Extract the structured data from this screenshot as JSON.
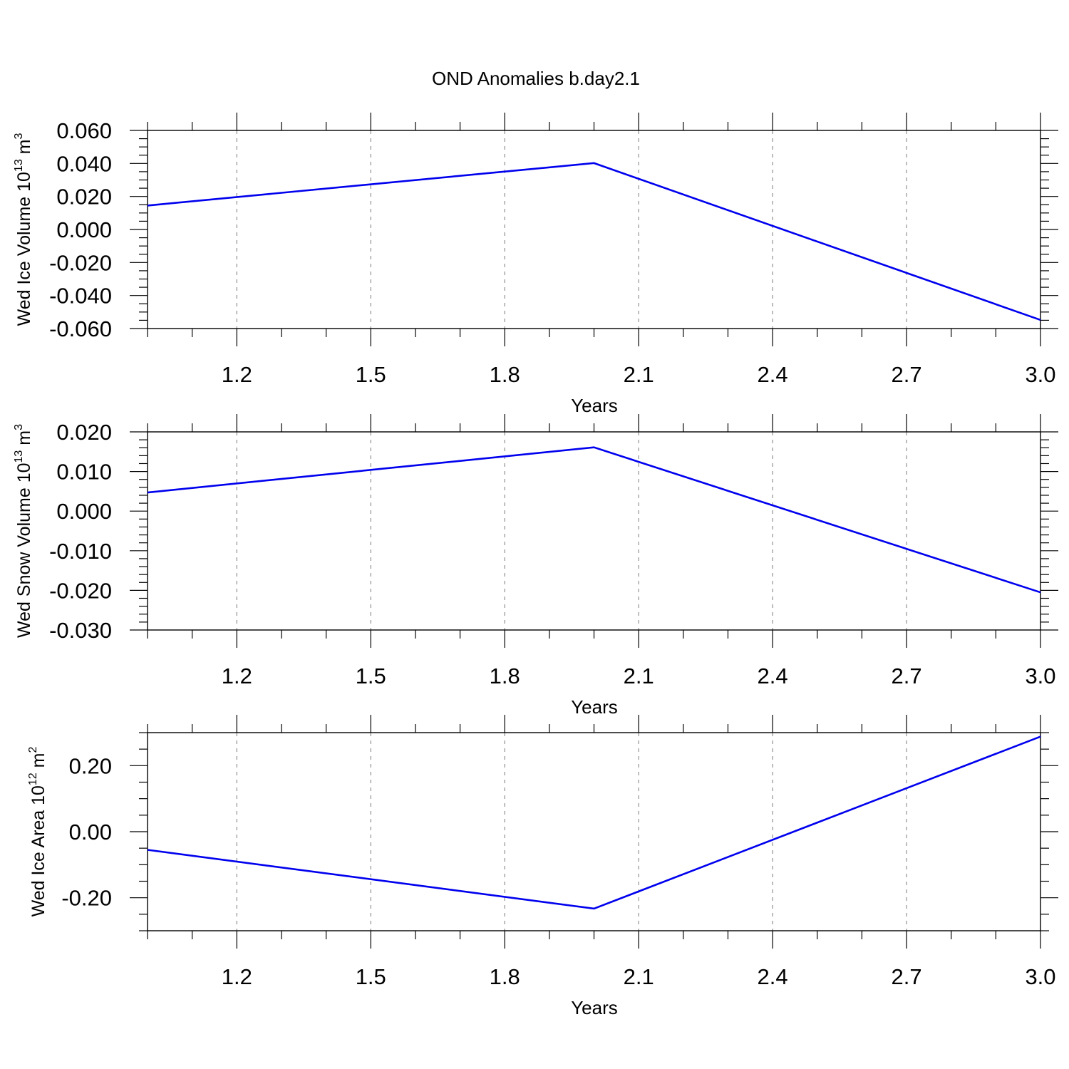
{
  "chart_data": {
    "title": "OND Anomalies b.day2.1",
    "panels": [
      {
        "type": "line",
        "xlabel": "Years",
        "ylabel": {
          "prefix": "Wed Ice Volume 10",
          "exp": "13",
          "unit": " m",
          "unit_exp": "3"
        },
        "xlim": [
          1.0,
          3.0
        ],
        "ylim": [
          -0.06,
          0.06
        ],
        "yticks": [
          -0.06,
          -0.04,
          -0.02,
          0.0,
          0.02,
          0.04,
          0.06
        ],
        "ytick_labels": [
          "-0.060",
          "-0.040",
          "-0.020",
          "0.000",
          "0.020",
          "0.040",
          "0.060"
        ],
        "ytick_minor_step": 0.005,
        "series": [
          {
            "x": [
              1.0,
              2.0,
              3.0
            ],
            "y": [
              0.0145,
              0.0402,
              -0.0548
            ]
          }
        ]
      },
      {
        "type": "line",
        "xlabel": "Years",
        "ylabel": {
          "prefix": "Wed Snow Volume 10",
          "exp": "13",
          "unit": " m",
          "unit_exp": "3"
        },
        "xlim": [
          1.0,
          3.0
        ],
        "ylim": [
          -0.03,
          0.02
        ],
        "yticks": [
          -0.03,
          -0.02,
          -0.01,
          0.0,
          0.01,
          0.02
        ],
        "ytick_labels": [
          "-0.030",
          "-0.020",
          "-0.010",
          "0.000",
          "0.010",
          "0.020"
        ],
        "ytick_minor_step": 0.002,
        "series": [
          {
            "x": [
              1.0,
              2.0,
              3.0
            ],
            "y": [
              0.0047,
              0.0161,
              -0.0205
            ]
          }
        ]
      },
      {
        "type": "line",
        "xlabel": "Years",
        "ylabel": {
          "prefix": "Wed Ice Area 10",
          "exp": "12",
          "unit": " m",
          "unit_exp": "2"
        },
        "xlim": [
          1.0,
          3.0
        ],
        "ylim": [
          -0.3,
          0.3
        ],
        "yticks": [
          -0.2,
          0.0,
          0.2
        ],
        "ytick_labels": [
          "-0.20",
          "0.00",
          "0.20"
        ],
        "ytick_minor_step": 0.05,
        "series": [
          {
            "x": [
              1.0,
              2.0,
              3.0
            ],
            "y": [
              -0.055,
              -0.233,
              0.288
            ]
          }
        ]
      }
    ],
    "xticks": [
      1.2,
      1.5,
      1.8,
      2.1,
      2.4,
      2.7,
      3.0
    ],
    "xtick_labels": [
      "1.2",
      "1.5",
      "1.8",
      "2.1",
      "2.4",
      "2.7",
      "3.0"
    ],
    "x_minor_step": 0.1,
    "grid": "vertical dashed at major x ticks",
    "colors": {
      "line": "#0000ee",
      "grid": "#999999",
      "axis": "#000000"
    }
  }
}
